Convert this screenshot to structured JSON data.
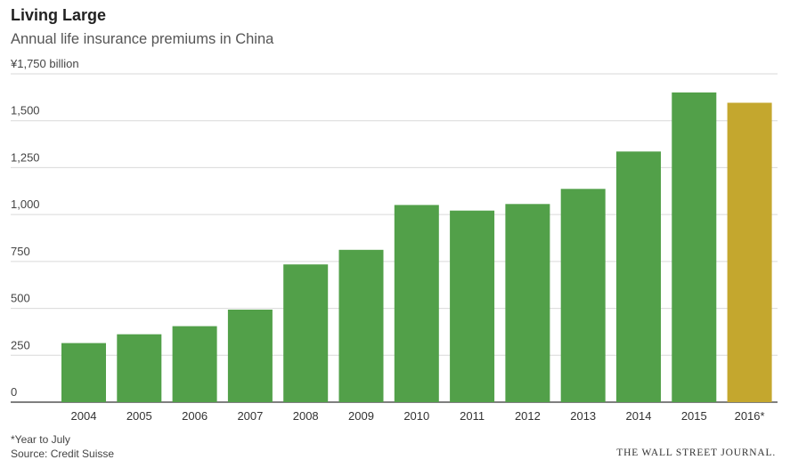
{
  "title": "Living Large",
  "subtitle": "Annual life insurance premiums in China",
  "footnote": "*Year to July",
  "source": "Source: Credit Suisse",
  "publisher": "THE WALL STREET JOURNAL.",
  "colors": {
    "bar": "#52a049",
    "highlight": "#c4a72e",
    "grid": "#d9d9d9",
    "axis": "#333333"
  },
  "chart_data": {
    "type": "bar",
    "title": "Living Large",
    "subtitle": "Annual life insurance premiums in China",
    "xlabel": "",
    "ylabel": "¥ billion",
    "ylim": [
      0,
      1750
    ],
    "yticks": [
      0,
      250,
      500,
      750,
      1000,
      1250,
      1500,
      1750
    ],
    "ytick_labels": [
      "0",
      "250",
      "500",
      "750",
      "1,000",
      "1,250",
      "1,500",
      "¥1,750 billion"
    ],
    "categories": [
      "2004",
      "2005",
      "2006",
      "2007",
      "2008",
      "2009",
      "2010",
      "2011",
      "2012",
      "2013",
      "2014",
      "2015",
      "2016*"
    ],
    "values": [
      315,
      362,
      405,
      493,
      734,
      812,
      1051,
      1021,
      1056,
      1137,
      1336,
      1651,
      1596
    ],
    "highlight_index": 12,
    "grid": true
  }
}
